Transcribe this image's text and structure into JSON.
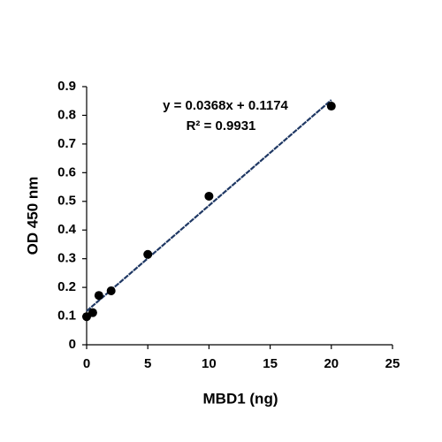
{
  "chart_data": {
    "type": "scatter",
    "x_label": "MBD1 (ng)",
    "y_label": "OD 450 nm",
    "annotations": [
      "y = 0.0368x + 0.1174",
      "R² = 0.9931"
    ],
    "series": [
      {
        "x": [
          0,
          0.5,
          1,
          2,
          5,
          10,
          20
        ],
        "values": [
          0.098,
          0.112,
          0.172,
          0.188,
          0.315,
          0.518,
          0.832
        ],
        "color": "#000000"
      }
    ],
    "trendline": {
      "x": [
        0,
        20
      ],
      "values": [
        0.1174,
        0.8534
      ],
      "color": "#1f3864"
    },
    "xlim": [
      0,
      25
    ],
    "xticks": [
      0,
      5,
      10,
      15,
      20,
      25
    ],
    "ylim": [
      0,
      0.9
    ],
    "yticks": [
      {
        "value": 0,
        "label": "0"
      },
      0.1,
      0.2,
      0.3,
      0.4,
      0.5,
      0.6,
      0.7,
      0.8,
      0.9
    ],
    "grid": false
  }
}
